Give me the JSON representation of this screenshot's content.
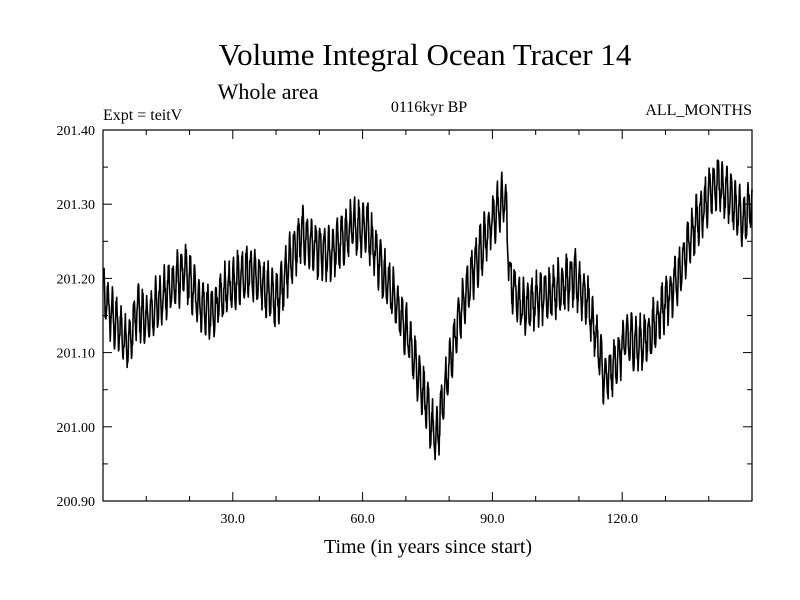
{
  "chart_data": {
    "type": "line",
    "title": "Volume Integral Ocean Tracer 14",
    "subtitle": "Whole area",
    "annotations": {
      "left": "Expt = teitV",
      "center": "0116kyr BP",
      "right": "ALL_MONTHS"
    },
    "xlabel": "Time (in years since start)",
    "ylabel": "",
    "xlim": [
      0,
      150
    ],
    "ylim": [
      200.9,
      201.4
    ],
    "xticks": [
      30,
      60,
      90,
      120
    ],
    "xtick_labels": [
      "30.0",
      "60.0",
      "90.0",
      "120.0"
    ],
    "yticks": [
      200.9,
      201.0,
      201.1,
      201.2,
      201.3,
      201.4
    ],
    "ytick_labels": [
      "200.90",
      "201.00",
      "201.10",
      "201.20",
      "201.30",
      "201.40"
    ],
    "grid": false,
    "samples_per_year": 12,
    "seasonal_amplitude": 0.03,
    "series": [
      {
        "name": "Tracer 14",
        "color": "#000000",
        "trend_x": [
          0,
          2,
          4,
          6,
          8,
          10,
          13,
          16,
          19,
          22,
          25,
          28,
          31,
          34,
          37,
          40,
          43,
          46,
          49,
          52,
          55,
          58,
          61,
          64,
          67,
          70,
          73,
          76,
          77,
          79,
          82,
          85,
          88,
          91,
          93,
          94,
          97,
          100,
          103,
          106,
          109,
          112,
          114,
          116,
          118,
          121,
          124,
          127,
          130,
          133,
          136,
          139,
          142,
          145,
          148,
          150
        ],
        "trend_y": [
          201.18,
          201.15,
          201.13,
          201.11,
          201.16,
          201.14,
          201.17,
          201.19,
          201.21,
          201.17,
          201.15,
          201.18,
          201.2,
          201.21,
          201.19,
          201.17,
          201.22,
          201.26,
          201.24,
          201.23,
          201.25,
          201.27,
          201.27,
          201.22,
          201.18,
          201.13,
          201.07,
          201.0,
          200.98,
          201.05,
          201.14,
          201.2,
          201.25,
          201.29,
          201.31,
          201.2,
          201.16,
          201.17,
          201.18,
          201.19,
          201.2,
          201.17,
          201.12,
          201.06,
          201.08,
          201.12,
          201.11,
          201.13,
          201.17,
          201.2,
          201.26,
          201.3,
          201.33,
          201.31,
          201.28,
          201.3
        ]
      }
    ]
  }
}
